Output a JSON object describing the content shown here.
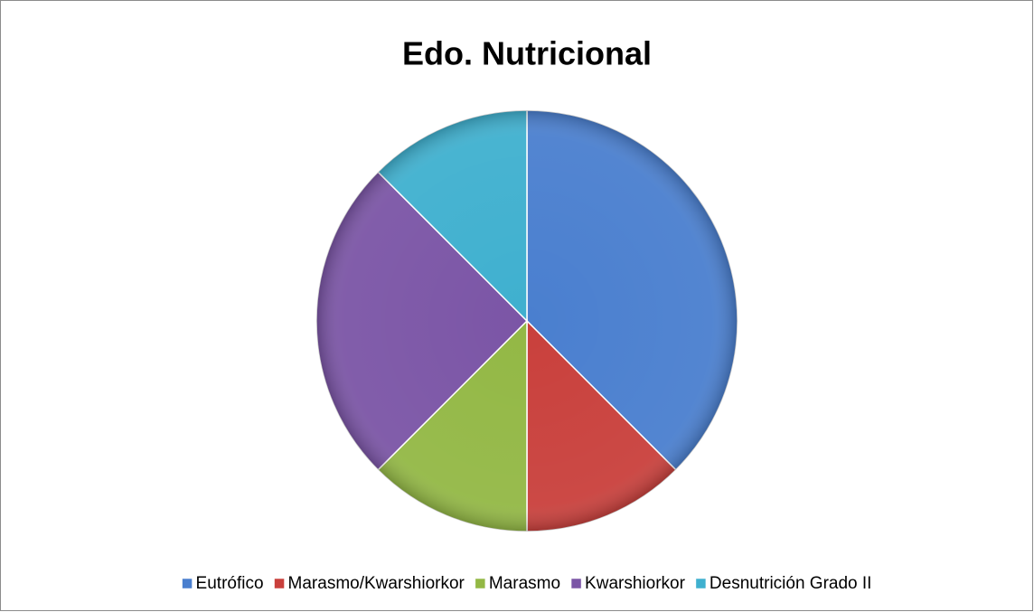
{
  "chart_data": {
    "type": "pie",
    "title": "Edo. Nutricional",
    "categories": [
      "Eutrófico",
      "Marasmo/Kwarshiorkor",
      "Marasmo",
      "Kwarshiorkor",
      "Desnutrición Grado II"
    ],
    "values": [
      37.5,
      12.5,
      12.5,
      25,
      12.5
    ],
    "colors": [
      "#4a7fcf",
      "#c9403c",
      "#93b845",
      "#7b55a6",
      "#3fb0cf"
    ],
    "legend": "bottom"
  }
}
